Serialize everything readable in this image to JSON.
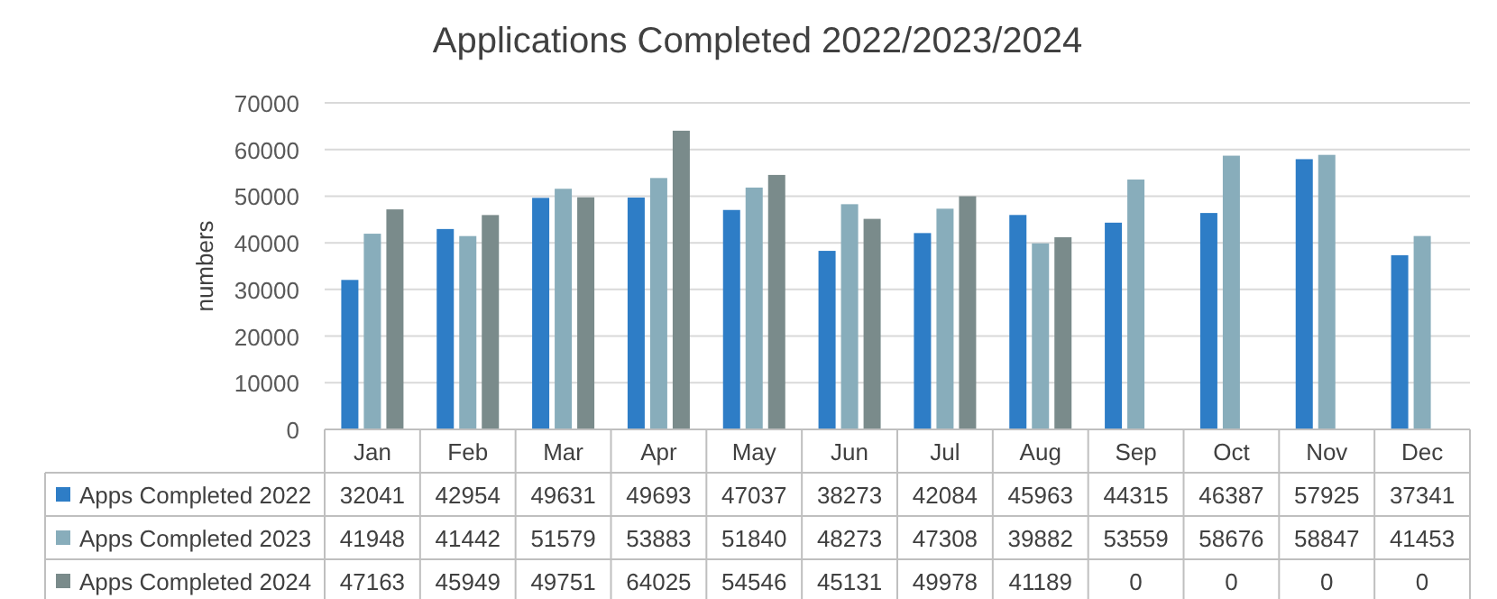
{
  "chart_data": {
    "type": "bar",
    "title": "Applications Completed 2022/2023/2024",
    "ylabel": "numbers",
    "categories": [
      "Jan",
      "Feb",
      "Mar",
      "Apr",
      "May",
      "Jun",
      "Jul",
      "Aug",
      "Sep",
      "Oct",
      "Nov",
      "Dec"
    ],
    "series": [
      {
        "name": "Apps Completed 2022",
        "color": "#2e7dc6",
        "values": [
          32041,
          42954,
          49631,
          49693,
          47037,
          38273,
          42084,
          45963,
          44315,
          46387,
          57925,
          37341
        ]
      },
      {
        "name": "Apps Completed 2023",
        "color": "#88adbb",
        "values": [
          41948,
          41442,
          51579,
          53883,
          51840,
          48273,
          47308,
          39882,
          53559,
          58676,
          58847,
          41453
        ]
      },
      {
        "name": "Apps Completed 2024",
        "color": "#7a8b8b",
        "values": [
          47163,
          45949,
          49751,
          64025,
          54546,
          45131,
          49978,
          41189,
          0,
          0,
          0,
          0
        ]
      }
    ],
    "ylim": [
      0,
      70000
    ],
    "yticks": [
      0,
      10000,
      20000,
      30000,
      40000,
      50000,
      60000,
      70000
    ],
    "grid": "y",
    "data_labels": true,
    "legend": "bottom"
  }
}
